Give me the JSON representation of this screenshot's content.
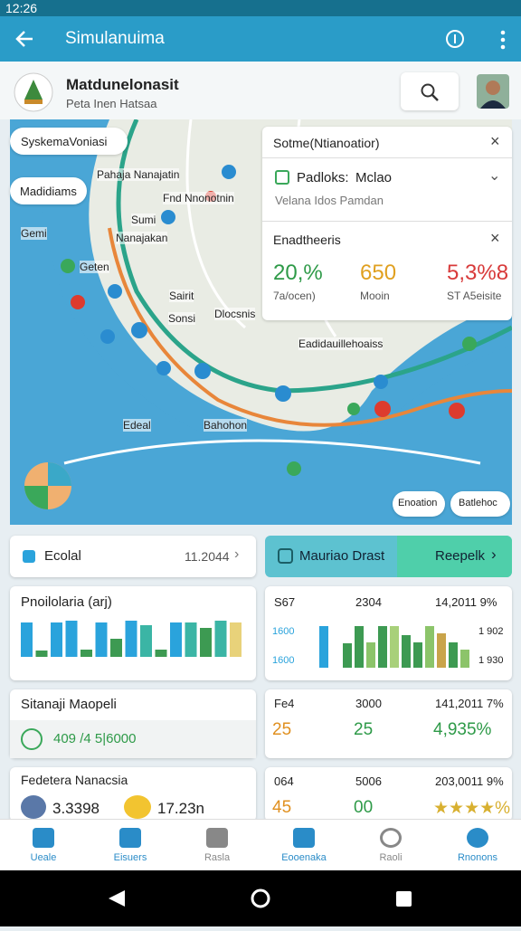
{
  "status_bar": {
    "time": "12:26"
  },
  "app_bar": {
    "title": "Simulanuima"
  },
  "header": {
    "title": "Matdunelonasit",
    "subtitle": "Peta Inen Hatsaa"
  },
  "map": {
    "chips": [
      "SyskemaVoniasi",
      "Madidiams"
    ],
    "labels": [
      "Pahaja Nanajatin",
      "Sumi",
      "Nanajakan",
      "Geten",
      "Sairit",
      "Dlocsnis",
      "Gemi",
      "Sonsi",
      "Edeal",
      "Bahohon",
      "Eadidauillehoaiss",
      "Fnd Nnonotnin"
    ],
    "buttons": [
      "Enoation",
      "Batlehoc"
    ]
  },
  "popup": {
    "title": "Sotme(Ntianoatior)",
    "item": "Padloks:",
    "item_value": "Mclao",
    "item_sub": "Velana Idos Pamdan",
    "section": "Enadtheeris",
    "stats": [
      {
        "value": "20,%",
        "label": "7a/ocen)",
        "color": "#2e9a48"
      },
      {
        "value": "650",
        "label": "Mooin",
        "color": "#e0a020"
      },
      {
        "value": "5,3%8",
        "label": "ST A5eisite",
        "color": "#d83a3a"
      }
    ]
  },
  "summary": {
    "label": "Ecolal",
    "value": "11.2044",
    "action": "Mauriao Drast",
    "action_button": "Reepelk"
  },
  "chart_left": {
    "title": "Pnoilolaria (arj)",
    "values": [
      38,
      7,
      38,
      40,
      8,
      38,
      20,
      40,
      35,
      8,
      38,
      38,
      32,
      40,
      38
    ],
    "colors": [
      "#2aa3dc",
      "#3d9a52",
      "#2aa3dc",
      "#2aa3dc",
      "#3d9a52",
      "#2aa3dc",
      "#3d9a52",
      "#2aa3dc",
      "#3bb5a5",
      "#3d9a52",
      "#2aa3dc",
      "#3bb5a5",
      "#3d9a52",
      "#3bb5a5",
      "#e8d27a"
    ]
  },
  "chart_right": {
    "header": [
      "S67",
      "2304",
      "14,2011 9%"
    ],
    "left_labels": [
      "1600",
      "1600"
    ],
    "right_labels": [
      "1 902",
      "1 930"
    ],
    "values": [
      46,
      0,
      27,
      46,
      28,
      46,
      46,
      36,
      28,
      46,
      38,
      28,
      20
    ],
    "colors": [
      "#2aa3dc",
      "#ffffff",
      "#3d9a52",
      "#3d9a52",
      "#8cc46a",
      "#3d9a52",
      "#a8d07a",
      "#3d9a52",
      "#3d9a52",
      "#8cc46a",
      "#c9a44a",
      "#3d9a52",
      "#8cc46a"
    ]
  },
  "card_mid_left": {
    "title": "Sitanaji Maopeli",
    "value": "409 /4 5|6000"
  },
  "card_mid_right": {
    "header": [
      "Fe4",
      "3000",
      "141,2011 7%"
    ],
    "values": [
      "25",
      "25",
      "4,935%"
    ],
    "colors": [
      "#e09020",
      "#2e9a48",
      "#2e9a48"
    ]
  },
  "card_bot_left": {
    "title": "Fedetera Nanacsia",
    "items": [
      "3.3398",
      "17.23n"
    ]
  },
  "card_bot_right": {
    "header": [
      "064",
      "5006",
      "203,0011 9%"
    ],
    "values": [
      "45",
      "00",
      "★★★★%"
    ],
    "colors": [
      "#e09020",
      "#2e9a48",
      "#d8b030"
    ]
  },
  "nav": [
    "Ueale",
    "Eisuers",
    "Rasla",
    "Eooenaka",
    "Raoli",
    "Rnonons"
  ]
}
